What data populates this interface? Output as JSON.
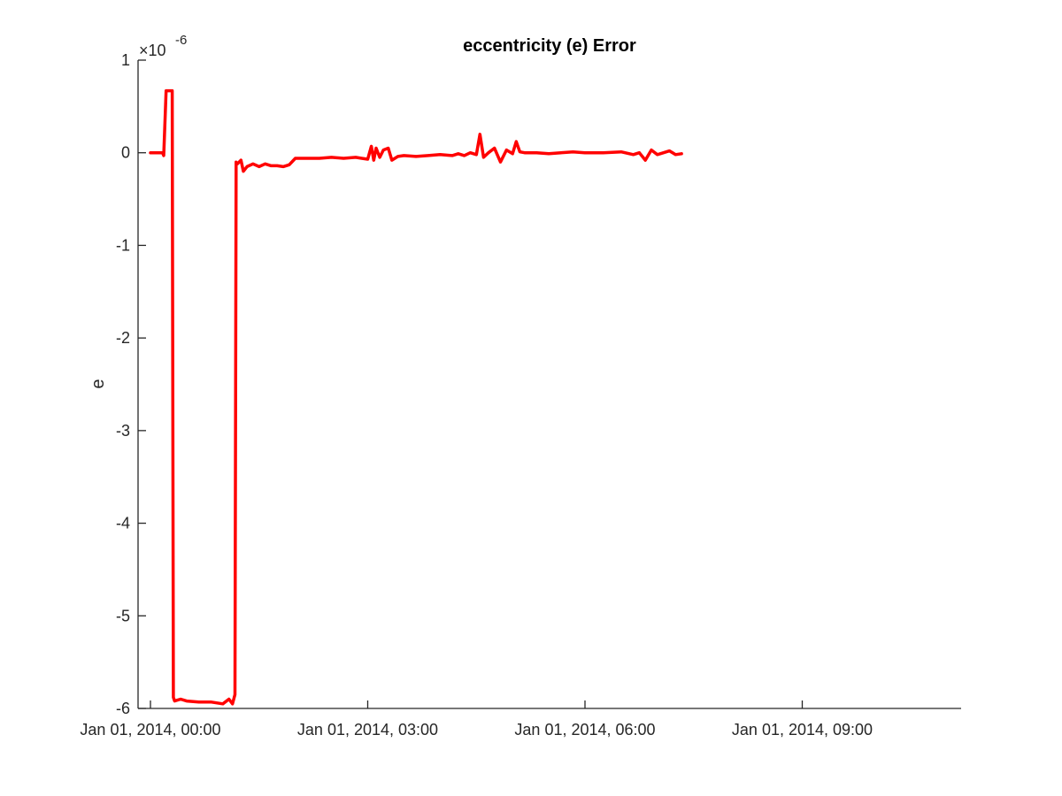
{
  "chart_data": {
    "type": "line",
    "title": "eccentricity (e) Error",
    "xlabel": "",
    "ylabel": "e",
    "y_multiplier": "×10",
    "y_exponent": "-6",
    "x_format": "MMM DD, YYYY, HH:mm",
    "xlim": [
      "2014-01-01 00:00",
      "2014-01-01 11:10"
    ],
    "ylim": [
      -6,
      1
    ],
    "x_ticks": [
      "2014-01-01 00:00",
      "2014-01-01 03:00",
      "2014-01-01 06:00",
      "2014-01-01 09:00"
    ],
    "x_tick_labels": [
      "Jan 01, 2014, 00:00",
      "Jan 01, 2014, 03:00",
      "Jan 01, 2014, 06:00",
      "Jan 01, 2014, 09:00"
    ],
    "y_ticks": [
      1,
      0,
      -1,
      -2,
      -3,
      -4,
      -5,
      -6
    ],
    "y_tick_labels": [
      "1",
      "0",
      "-1",
      "-2",
      "-3",
      "-4",
      "-5",
      "-6"
    ],
    "grid": false,
    "series": [
      {
        "color": "#ff0000",
        "x": [
          "2014-01-01 00:00",
          "2014-01-01 00:10",
          "2014-01-01 00:11",
          "2014-01-01 00:13",
          "2014-01-01 00:18",
          "2014-01-01 00:19",
          "2014-01-01 00:20",
          "2014-01-01 00:25",
          "2014-01-01 00:30",
          "2014-01-01 00:40",
          "2014-01-01 00:50",
          "2014-01-01 01:00",
          "2014-01-01 01:05",
          "2014-01-01 01:08",
          "2014-01-01 01:10",
          "2014-01-01 01:11",
          "2014-01-01 01:12",
          "2014-01-01 01:15",
          "2014-01-01 01:17",
          "2014-01-01 01:20",
          "2014-01-01 01:25",
          "2014-01-01 01:30",
          "2014-01-01 01:35",
          "2014-01-01 01:40",
          "2014-01-01 01:45",
          "2014-01-01 01:50",
          "2014-01-01 01:55",
          "2014-01-01 02:00",
          "2014-01-01 02:10",
          "2014-01-01 02:20",
          "2014-01-01 02:30",
          "2014-01-01 02:40",
          "2014-01-01 02:50",
          "2014-01-01 02:55",
          "2014-01-01 03:00",
          "2014-01-01 03:03",
          "2014-01-01 03:05",
          "2014-01-01 03:07",
          "2014-01-01 03:10",
          "2014-01-01 03:13",
          "2014-01-01 03:17",
          "2014-01-01 03:20",
          "2014-01-01 03:25",
          "2014-01-01 03:30",
          "2014-01-01 03:40",
          "2014-01-01 03:50",
          "2014-01-01 04:00",
          "2014-01-01 04:10",
          "2014-01-01 04:15",
          "2014-01-01 04:20",
          "2014-01-01 04:25",
          "2014-01-01 04:30",
          "2014-01-01 04:33",
          "2014-01-01 04:36",
          "2014-01-01 04:40",
          "2014-01-01 04:45",
          "2014-01-01 04:50",
          "2014-01-01 04:55",
          "2014-01-01 05:00",
          "2014-01-01 05:03",
          "2014-01-01 05:06",
          "2014-01-01 05:10",
          "2014-01-01 05:20",
          "2014-01-01 05:30",
          "2014-01-01 05:40",
          "2014-01-01 05:50",
          "2014-01-01 06:00",
          "2014-01-01 06:15",
          "2014-01-01 06:30",
          "2014-01-01 06:40",
          "2014-01-01 06:45",
          "2014-01-01 06:50",
          "2014-01-01 06:55",
          "2014-01-01 07:00",
          "2014-01-01 07:05",
          "2014-01-01 07:10",
          "2014-01-01 07:15",
          "2014-01-01 07:20"
        ],
        "y": [
          0.0,
          0.0,
          -0.03,
          0.67,
          0.67,
          -5.88,
          -5.92,
          -5.9,
          -5.92,
          -5.93,
          -5.93,
          -5.95,
          -5.9,
          -5.95,
          -5.85,
          -0.1,
          -0.12,
          -0.08,
          -0.2,
          -0.15,
          -0.12,
          -0.15,
          -0.12,
          -0.14,
          -0.14,
          -0.15,
          -0.13,
          -0.06,
          -0.06,
          -0.06,
          -0.05,
          -0.06,
          -0.05,
          -0.06,
          -0.07,
          0.07,
          -0.08,
          0.05,
          -0.05,
          0.03,
          0.05,
          -0.08,
          -0.04,
          -0.03,
          -0.04,
          -0.03,
          -0.02,
          -0.03,
          -0.01,
          -0.03,
          0.0,
          -0.02,
          0.2,
          -0.05,
          0.0,
          0.05,
          -0.1,
          0.03,
          -0.01,
          0.12,
          0.01,
          0.0,
          0.0,
          -0.01,
          0.0,
          0.01,
          0.0,
          0.0,
          0.01,
          -0.02,
          0.0,
          -0.08,
          0.03,
          -0.02,
          0.0,
          0.02,
          -0.02,
          -0.01
        ]
      }
    ]
  }
}
